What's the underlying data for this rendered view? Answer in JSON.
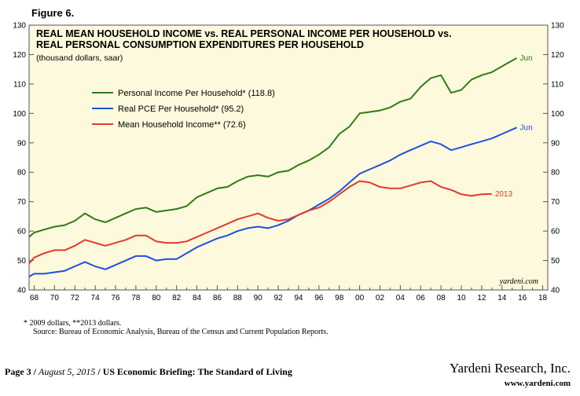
{
  "figure_label": "Figure 6.",
  "footnote": "*  2009 dollars, **2013 dollars.",
  "source": "Source: Bureau of Economic Analysis, Bureau of the Census and Current Population Reports.",
  "footer": {
    "page": "Page 3",
    "date": "August 5, 2015",
    "report": "US Economic Briefing: The Standard of Living",
    "company": "Yardeni Research, Inc.",
    "url": "www.yardeni.com"
  },
  "chart_data": {
    "type": "line",
    "title_lines": [
      "REAL MEAN HOUSEHOLD INCOME vs. REAL PERSONAL INCOME  PER HOUSEHOLD vs.",
      "REAL PERSONAL CONSUMPTION EXPENDITURES PER HOUSEHOLD"
    ],
    "subtitle": "(thousand dollars, saar)",
    "watermark": "yardeni.com",
    "xlim": [
      1967.5,
      2018.5
    ],
    "ylim": [
      40,
      130
    ],
    "xticks": [
      "68",
      "70",
      "72",
      "74",
      "76",
      "78",
      "80",
      "82",
      "84",
      "86",
      "88",
      "90",
      "92",
      "94",
      "96",
      "98",
      "00",
      "02",
      "04",
      "06",
      "08",
      "10",
      "12",
      "14",
      "16",
      "18"
    ],
    "xtick_values": [
      1968,
      1970,
      1972,
      1974,
      1976,
      1978,
      1980,
      1982,
      1984,
      1986,
      1988,
      1990,
      1992,
      1994,
      1996,
      1998,
      2000,
      2002,
      2004,
      2006,
      2008,
      2010,
      2012,
      2014,
      2016,
      2018
    ],
    "yticks": [
      40,
      50,
      60,
      70,
      80,
      90,
      100,
      110,
      120,
      130
    ],
    "legend_position": "upper-left",
    "colors": {
      "background": "#fdf9dc",
      "axis": "#555555"
    },
    "series": [
      {
        "name": "Personal Income Per Household* (118.8)",
        "color": "#2e7d14",
        "end_label": "Jun",
        "points": [
          [
            1967.5,
            58
          ],
          [
            1968,
            59.5
          ],
          [
            1969,
            60.5
          ],
          [
            1970,
            61.5
          ],
          [
            1971,
            62
          ],
          [
            1972,
            63.5
          ],
          [
            1973,
            66
          ],
          [
            1974,
            64
          ],
          [
            1975,
            63
          ],
          [
            1976,
            64.5
          ],
          [
            1977,
            66
          ],
          [
            1978,
            67.5
          ],
          [
            1979,
            68
          ],
          [
            1980,
            66.5
          ],
          [
            1981,
            67
          ],
          [
            1982,
            67.5
          ],
          [
            1983,
            68.5
          ],
          [
            1984,
            71.5
          ],
          [
            1985,
            73
          ],
          [
            1986,
            74.5
          ],
          [
            1987,
            75
          ],
          [
            1988,
            77
          ],
          [
            1989,
            78.5
          ],
          [
            1990,
            79
          ],
          [
            1991,
            78.5
          ],
          [
            1992,
            80
          ],
          [
            1993,
            80.5
          ],
          [
            1994,
            82.5
          ],
          [
            1995,
            84
          ],
          [
            1996,
            86
          ],
          [
            1997,
            88.5
          ],
          [
            1998,
            93
          ],
          [
            1999,
            95.5
          ],
          [
            2000,
            100
          ],
          [
            2001,
            100.5
          ],
          [
            2002,
            101
          ],
          [
            2003,
            102
          ],
          [
            2004,
            104
          ],
          [
            2005,
            105
          ],
          [
            2006,
            109
          ],
          [
            2007,
            112
          ],
          [
            2008,
            113
          ],
          [
            2009,
            107
          ],
          [
            2010,
            108
          ],
          [
            2011,
            111.5
          ],
          [
            2012,
            113
          ],
          [
            2013,
            114
          ],
          [
            2014,
            116
          ],
          [
            2015.45,
            118.8
          ]
        ]
      },
      {
        "name": "Real PCE Per Household* (95.2)",
        "color": "#1f4fe0",
        "end_label": "Jun",
        "points": [
          [
            1967.5,
            44.5
          ],
          [
            1968,
            45.5
          ],
          [
            1969,
            45.5
          ],
          [
            1970,
            46
          ],
          [
            1971,
            46.5
          ],
          [
            1972,
            48
          ],
          [
            1973,
            49.5
          ],
          [
            1974,
            48
          ],
          [
            1975,
            47
          ],
          [
            1976,
            48.5
          ],
          [
            1977,
            50
          ],
          [
            1978,
            51.5
          ],
          [
            1979,
            51.5
          ],
          [
            1980,
            50
          ],
          [
            1981,
            50.5
          ],
          [
            1982,
            50.5
          ],
          [
            1983,
            52.5
          ],
          [
            1984,
            54.5
          ],
          [
            1985,
            56
          ],
          [
            1986,
            57.5
          ],
          [
            1987,
            58.5
          ],
          [
            1988,
            60
          ],
          [
            1989,
            61
          ],
          [
            1990,
            61.5
          ],
          [
            1991,
            61
          ],
          [
            1992,
            62
          ],
          [
            1993,
            63.5
          ],
          [
            1994,
            65.5
          ],
          [
            1995,
            67
          ],
          [
            1996,
            69
          ],
          [
            1997,
            71
          ],
          [
            1998,
            73.5
          ],
          [
            1999,
            76.5
          ],
          [
            2000,
            79.5
          ],
          [
            2001,
            81
          ],
          [
            2002,
            82.5
          ],
          [
            2003,
            84
          ],
          [
            2004,
            86
          ],
          [
            2005,
            87.5
          ],
          [
            2006,
            89
          ],
          [
            2007,
            90.5
          ],
          [
            2008,
            89.5
          ],
          [
            2009,
            87.5
          ],
          [
            2010,
            88.5
          ],
          [
            2011,
            89.5
          ],
          [
            2012,
            90.5
          ],
          [
            2013,
            91.5
          ],
          [
            2014,
            93
          ],
          [
            2015.45,
            95.2
          ]
        ]
      },
      {
        "name": "Mean Household Income** (72.6)",
        "color": "#e23a2e",
        "end_label": "2013",
        "points": [
          [
            1967.5,
            49
          ],
          [
            1968,
            51
          ],
          [
            1969,
            52.5
          ],
          [
            1970,
            53.5
          ],
          [
            1971,
            53.5
          ],
          [
            1972,
            55
          ],
          [
            1973,
            57
          ],
          [
            1974,
            56
          ],
          [
            1975,
            55
          ],
          [
            1976,
            56
          ],
          [
            1977,
            57
          ],
          [
            1978,
            58.5
          ],
          [
            1979,
            58.5
          ],
          [
            1980,
            56.5
          ],
          [
            1981,
            56
          ],
          [
            1982,
            56
          ],
          [
            1983,
            56.5
          ],
          [
            1984,
            58
          ],
          [
            1985,
            59.5
          ],
          [
            1986,
            61
          ],
          [
            1987,
            62.5
          ],
          [
            1988,
            64
          ],
          [
            1989,
            65
          ],
          [
            1990,
            66
          ],
          [
            1991,
            64.5
          ],
          [
            1992,
            63.5
          ],
          [
            1993,
            64
          ],
          [
            1994,
            65.5
          ],
          [
            1995,
            67
          ],
          [
            1996,
            68
          ],
          [
            1997,
            70
          ],
          [
            1998,
            72.5
          ],
          [
            1999,
            75
          ],
          [
            2000,
            77
          ],
          [
            2001,
            76.5
          ],
          [
            2002,
            75
          ],
          [
            2003,
            74.5
          ],
          [
            2004,
            74.5
          ],
          [
            2005,
            75.5
          ],
          [
            2006,
            76.5
          ],
          [
            2007,
            77
          ],
          [
            2008,
            75
          ],
          [
            2009,
            74
          ],
          [
            2010,
            72.5
          ],
          [
            2011,
            72
          ],
          [
            2012,
            72.5
          ],
          [
            2013,
            72.6
          ]
        ]
      }
    ]
  }
}
